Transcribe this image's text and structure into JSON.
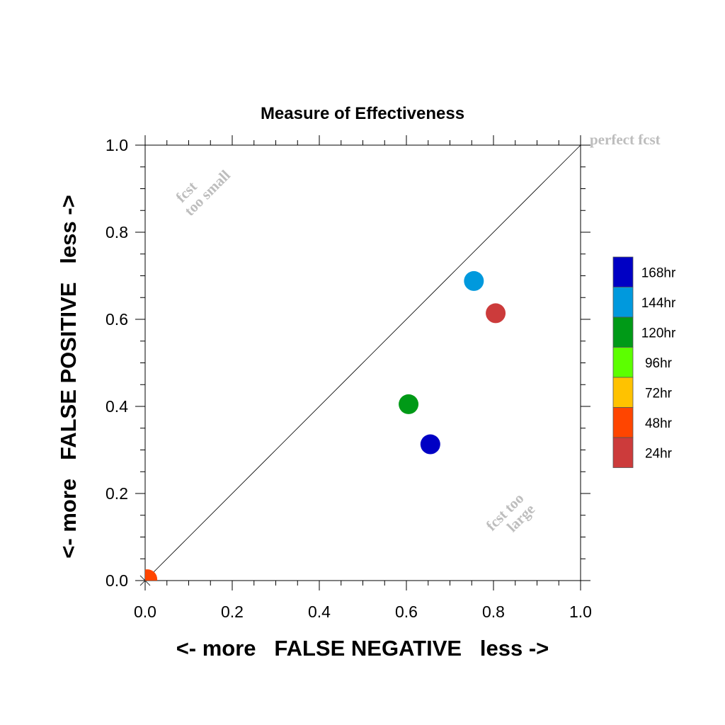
{
  "chart_data": {
    "type": "scatter",
    "title": "Measure of Effectiveness",
    "xlabel": "<- more   FALSE NEGATIVE   less ->",
    "ylabel": "<- more   FALSE POSITIVE   less ->",
    "xlim": [
      0,
      1
    ],
    "ylim": [
      0,
      1
    ],
    "x_ticks": [
      "0.0",
      "0.2",
      "0.4",
      "0.6",
      "0.8",
      "1.0"
    ],
    "y_ticks": [
      "0.0",
      "0.2",
      "0.4",
      "0.6",
      "0.8",
      "1.0"
    ],
    "grid": false,
    "legend_position": "right",
    "reference_line": {
      "from": [
        0,
        0
      ],
      "to": [
        1,
        1
      ]
    },
    "annotations": {
      "perfect": "perfect fcst",
      "too_small_1": "fcst",
      "too_small_2": "too small",
      "too_large_1": "fcst too",
      "too_large_2": "large"
    },
    "series": [
      {
        "name": "168hr",
        "color": "#0000c4",
        "points": [
          [
            0.655,
            0.313
          ]
        ]
      },
      {
        "name": "144hr",
        "color": "#0099dd",
        "points": [
          [
            0.755,
            0.688
          ]
        ]
      },
      {
        "name": "120hr",
        "color": "#009a17",
        "points": [
          [
            0.605,
            0.405
          ]
        ]
      },
      {
        "name": "96hr",
        "color": "#5cff00",
        "points": []
      },
      {
        "name": "72hr",
        "color": "#ffc200",
        "points": []
      },
      {
        "name": "48hr",
        "color": "#ff4500",
        "points": [
          [
            0.005,
            0.003
          ]
        ]
      },
      {
        "name": "24hr",
        "color": "#cc3b3b",
        "points": [
          [
            0.805,
            0.614
          ]
        ]
      }
    ]
  }
}
